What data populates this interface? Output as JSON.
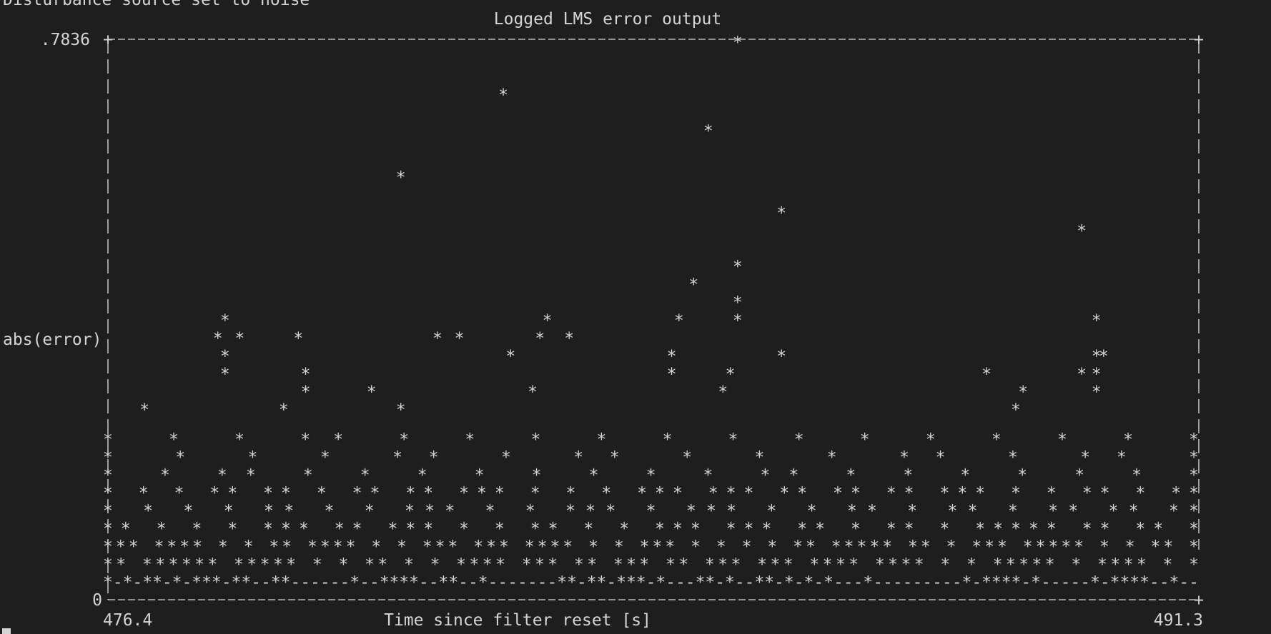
{
  "terminal": {
    "status_line": "Disturbance source set to noise"
  },
  "chart_data": {
    "type": "scatter",
    "style": "ascii-terminal",
    "marker": "*",
    "title": "Logged LMS error output",
    "xlabel": "Time since filter reset [s]",
    "ylabel": "abs(error)",
    "xlim": [
      476.4,
      491.3
    ],
    "ylim": [
      0,
      0.7836
    ],
    "x_tick_labels": [
      "476.4",
      "491.3"
    ],
    "y_tick_labels": [
      ".7836",
      "0"
    ],
    "grid": false,
    "legend": "none",
    "colors": {
      "background": "#1e1e1e",
      "foreground": "#d4d4d4"
    },
    "series": [
      {
        "points": [
          [
            485.0,
            0.7836
          ],
          [
            481.8,
            0.71
          ],
          [
            484.6,
            0.66
          ],
          [
            480.4,
            0.595
          ],
          [
            485.6,
            0.545
          ],
          [
            489.7,
            0.52
          ],
          [
            485.0,
            0.47
          ],
          [
            484.4,
            0.445
          ],
          [
            485.0,
            0.42
          ],
          [
            485.0,
            0.395
          ],
          [
            484.2,
            0.395
          ],
          [
            482.4,
            0.395
          ],
          [
            478.0,
            0.395
          ],
          [
            489.9,
            0.395
          ],
          [
            477.9,
            0.37
          ],
          [
            478.2,
            0.37
          ],
          [
            479.0,
            0.37
          ],
          [
            480.9,
            0.37
          ],
          [
            481.2,
            0.37
          ],
          [
            482.3,
            0.37
          ],
          [
            482.7,
            0.37
          ],
          [
            478.0,
            0.345
          ],
          [
            481.9,
            0.345
          ],
          [
            484.1,
            0.345
          ],
          [
            485.6,
            0.345
          ],
          [
            489.9,
            0.345
          ],
          [
            490.0,
            0.345
          ],
          [
            478.0,
            0.32
          ],
          [
            479.1,
            0.32
          ],
          [
            484.1,
            0.32
          ],
          [
            484.9,
            0.32
          ],
          [
            488.4,
            0.32
          ],
          [
            489.7,
            0.32
          ],
          [
            489.9,
            0.32
          ],
          [
            479.1,
            0.295
          ],
          [
            480.0,
            0.295
          ],
          [
            482.2,
            0.295
          ],
          [
            484.8,
            0.295
          ],
          [
            488.9,
            0.295
          ],
          [
            489.9,
            0.295
          ],
          [
            476.9,
            0.27
          ],
          [
            478.8,
            0.27
          ],
          [
            480.4,
            0.27
          ],
          [
            488.8,
            0.27
          ]
        ]
      }
    ]
  }
}
